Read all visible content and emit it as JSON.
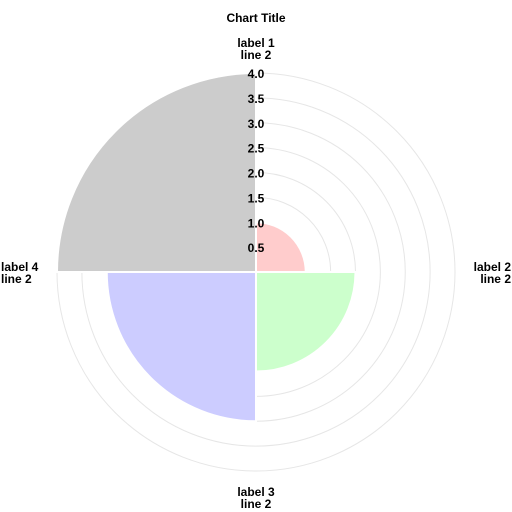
{
  "chart_data": {
    "type": "polar-area",
    "title": "Chart Title",
    "categories": [
      [
        "label 1",
        "line 2"
      ],
      [
        "label 2",
        "line 2"
      ],
      [
        "label 3",
        "line 2"
      ],
      [
        "label 4",
        "line 2"
      ]
    ],
    "values": [
      1.0,
      2.0,
      3.0,
      4.0
    ],
    "colors": [
      "#ffcccc",
      "#ccffcc",
      "#ccccff",
      "#cccccc"
    ],
    "rlim": [
      0,
      4.0
    ],
    "rticks": [
      0.5,
      1.0,
      1.5,
      2.0,
      2.5,
      3.0,
      3.5,
      4.0
    ],
    "rtick_labels": [
      "0.5",
      "1.0",
      "1.5",
      "2.0",
      "2.5",
      "3.0",
      "3.5",
      "4.0"
    ],
    "grid": true,
    "grid_color": "#e6e6e6",
    "start_angle": "top",
    "direction": "clockwise"
  }
}
